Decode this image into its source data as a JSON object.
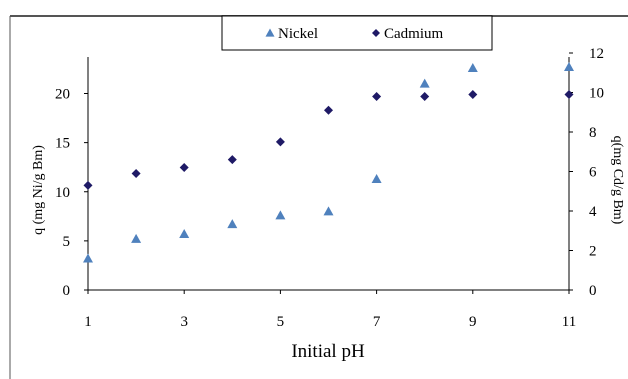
{
  "chart_data": {
    "type": "scatter",
    "title": "",
    "xlabel": "Initial pH",
    "ylabel": "q (mg Ni/g Bm)",
    "y2label": "q(mg Cd/g Bm)",
    "xlim": [
      1,
      11
    ],
    "ylim": [
      0,
      24
    ],
    "y2lim": [
      0,
      12
    ],
    "x_ticks": [
      "1",
      "3",
      "5",
      "7",
      "9",
      "11"
    ],
    "y_ticks": [
      "0",
      "5",
      "10",
      "15",
      "20"
    ],
    "y2_ticks": [
      "0",
      "2",
      "4",
      "6",
      "8",
      "10",
      "12"
    ],
    "grid": false,
    "legend_position": "top-center",
    "series": [
      {
        "name": "Nickel",
        "axis": "left",
        "marker": "triangle",
        "color": "#4f81bd",
        "x": [
          1,
          2,
          3,
          4,
          5,
          6,
          7,
          8,
          9,
          11
        ],
        "y": [
          3.2,
          5.2,
          5.7,
          6.7,
          7.6,
          8.0,
          11.3,
          21.0,
          22.6,
          22.7
        ]
      },
      {
        "name": "Cadmium",
        "axis": "right",
        "marker": "diamond",
        "color": "#1f1a66",
        "x": [
          1,
          2,
          3,
          4,
          5,
          6,
          7,
          8,
          9,
          11
        ],
        "y": [
          5.3,
          5.9,
          6.2,
          6.6,
          7.5,
          9.1,
          9.8,
          9.8,
          9.9,
          9.9
        ]
      }
    ]
  }
}
